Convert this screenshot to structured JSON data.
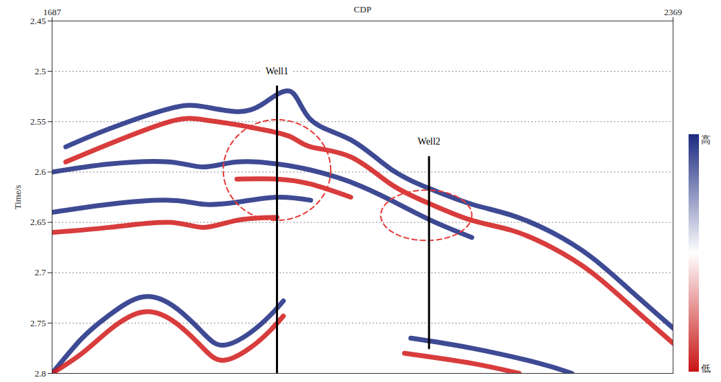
{
  "chart_data": {
    "type": "seismic",
    "x_label": "CDP",
    "y_label": "Time/s",
    "xlim": [
      1687,
      2369
    ],
    "xticks": [
      1687,
      2369
    ],
    "ylim": [
      2.45,
      2.8
    ],
    "yticks": [
      2.45,
      2.5,
      2.55,
      2.6,
      2.65,
      2.7,
      2.75,
      2.8
    ],
    "grid": true,
    "series": [
      {
        "color": "#1c2a80",
        "x": [
          1702,
          1750,
          1816,
          1853,
          1890,
          1919,
          1949,
          1971,
          2015,
          2059,
          2103,
          2148,
          2192,
          2236,
          2280,
          2325,
          2369
        ],
        "values": [
          2.575,
          2.557,
          2.537,
          2.535,
          2.54,
          2.532,
          2.52,
          2.548,
          2.568,
          2.597,
          2.617,
          2.632,
          2.643,
          2.66,
          2.685,
          2.72,
          2.755
        ]
      },
      {
        "color": "#d11a1a",
        "x": [
          1702,
          1750,
          1816,
          1853,
          1890,
          1919,
          1949,
          1971,
          2015,
          2059,
          2103,
          2148,
          2192,
          2236,
          2280,
          2325,
          2369
        ],
        "values": [
          2.59,
          2.572,
          2.55,
          2.548,
          2.553,
          2.558,
          2.565,
          2.575,
          2.585,
          2.612,
          2.632,
          2.648,
          2.658,
          2.675,
          2.7,
          2.735,
          2.77
        ]
      },
      {
        "color": "#1c2a80",
        "x": [
          1687,
          1750,
          1816,
          1853,
          1890,
          1934,
          1971,
          2015,
          2059,
          2103,
          2148
        ],
        "values": [
          2.6,
          2.592,
          2.59,
          2.595,
          2.59,
          2.592,
          2.598,
          2.61,
          2.628,
          2.648,
          2.665
        ]
      },
      {
        "color": "#d11a1a",
        "x": [
          1890,
          1934,
          1971,
          2015
        ],
        "values": [
          2.607,
          2.607,
          2.612,
          2.625
        ]
      },
      {
        "color": "#1c2a80",
        "x": [
          1687,
          1750,
          1816,
          1853,
          1890,
          1934,
          1971
        ],
        "values": [
          2.64,
          2.632,
          2.628,
          2.632,
          2.63,
          2.625,
          2.628
        ]
      },
      {
        "color": "#d11a1a",
        "x": [
          1687,
          1750,
          1816,
          1853,
          1890,
          1934
        ],
        "values": [
          2.66,
          2.655,
          2.65,
          2.655,
          2.648,
          2.645
        ]
      },
      {
        "color": "#1c2a80",
        "x": [
          1687,
          1720,
          1750,
          1787,
          1823,
          1853,
          1875,
          1904,
          1927,
          1941
        ],
        "values": [
          2.8,
          2.765,
          2.742,
          2.724,
          2.735,
          2.76,
          2.772,
          2.76,
          2.742,
          2.728
        ]
      },
      {
        "color": "#d11a1a",
        "x": [
          1687,
          1720,
          1750,
          1787,
          1823,
          1853,
          1875,
          1904,
          1927,
          1941
        ],
        "values": [
          2.8,
          2.78,
          2.757,
          2.739,
          2.75,
          2.775,
          2.787,
          2.775,
          2.757,
          2.743
        ]
      },
      {
        "color": "#1c2a80",
        "x": [
          2081,
          2148,
          2222,
          2258
        ],
        "values": [
          2.765,
          2.775,
          2.79,
          2.8
        ]
      },
      {
        "color": "#d11a1a",
        "x": [
          2074,
          2148,
          2200
        ],
        "values": [
          2.78,
          2.79,
          2.8
        ]
      }
    ],
    "wells": [
      {
        "label": "Well1",
        "cdp": 1934,
        "top": 2.515,
        "bottom": 2.8
      },
      {
        "label": "Well2",
        "cdp": 2101,
        "top": 2.585,
        "bottom": 2.775
      }
    ],
    "annotations": [
      {
        "shape": "ellipse",
        "center_x": 1934,
        "center_y": 2.598,
        "radius_x": 59,
        "radius_y": 0.05,
        "color": "#e53935",
        "line_style": "dashed"
      },
      {
        "shape": "ellipse",
        "center_x": 2098,
        "center_y": 2.643,
        "radius_x": 50,
        "radius_y": 0.025,
        "color": "#e53935",
        "line_style": "dashed"
      }
    ],
    "colorbar": {
      "labels": [
        "高",
        "低"
      ],
      "colors": [
        "#1c2a80",
        "#ffffff",
        "#c81414"
      ]
    }
  }
}
